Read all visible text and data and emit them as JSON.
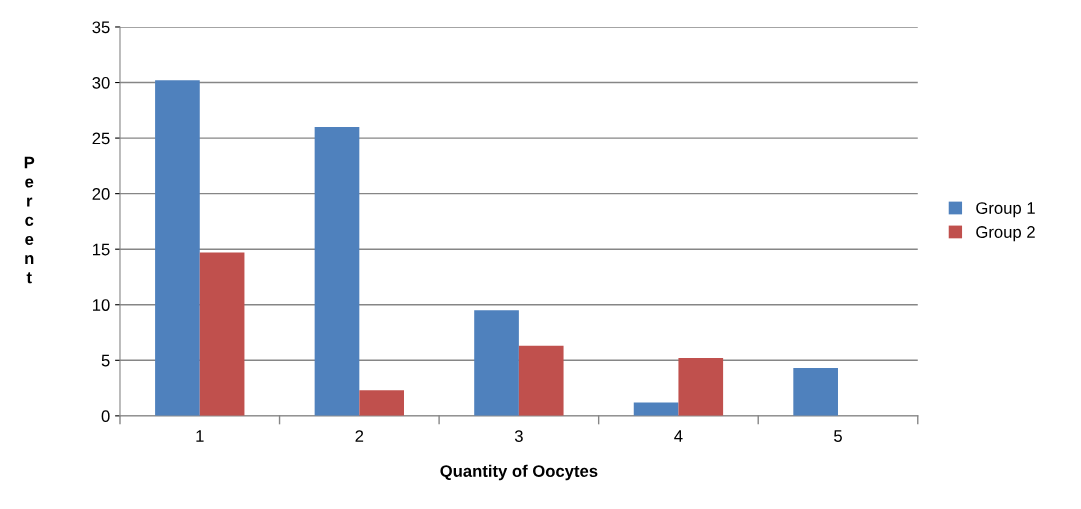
{
  "chart_data": {
    "type": "bar",
    "xlabel": "Quantity of Oocytes",
    "ylabel": "Percent",
    "categories": [
      "1",
      "2",
      "3",
      "4",
      "5"
    ],
    "series": [
      {
        "name": "Group 1",
        "color": "#4f81bd",
        "values": [
          30.2,
          26.0,
          9.5,
          1.2,
          4.3
        ]
      },
      {
        "name": "Group 2",
        "color": "#c0504d",
        "values": [
          14.7,
          2.3,
          6.3,
          5.2,
          0
        ]
      }
    ],
    "ylim": [
      0,
      35
    ],
    "yticks": [
      0,
      5,
      10,
      15,
      20,
      25,
      30,
      35
    ],
    "grid": "y",
    "legend": "right"
  }
}
